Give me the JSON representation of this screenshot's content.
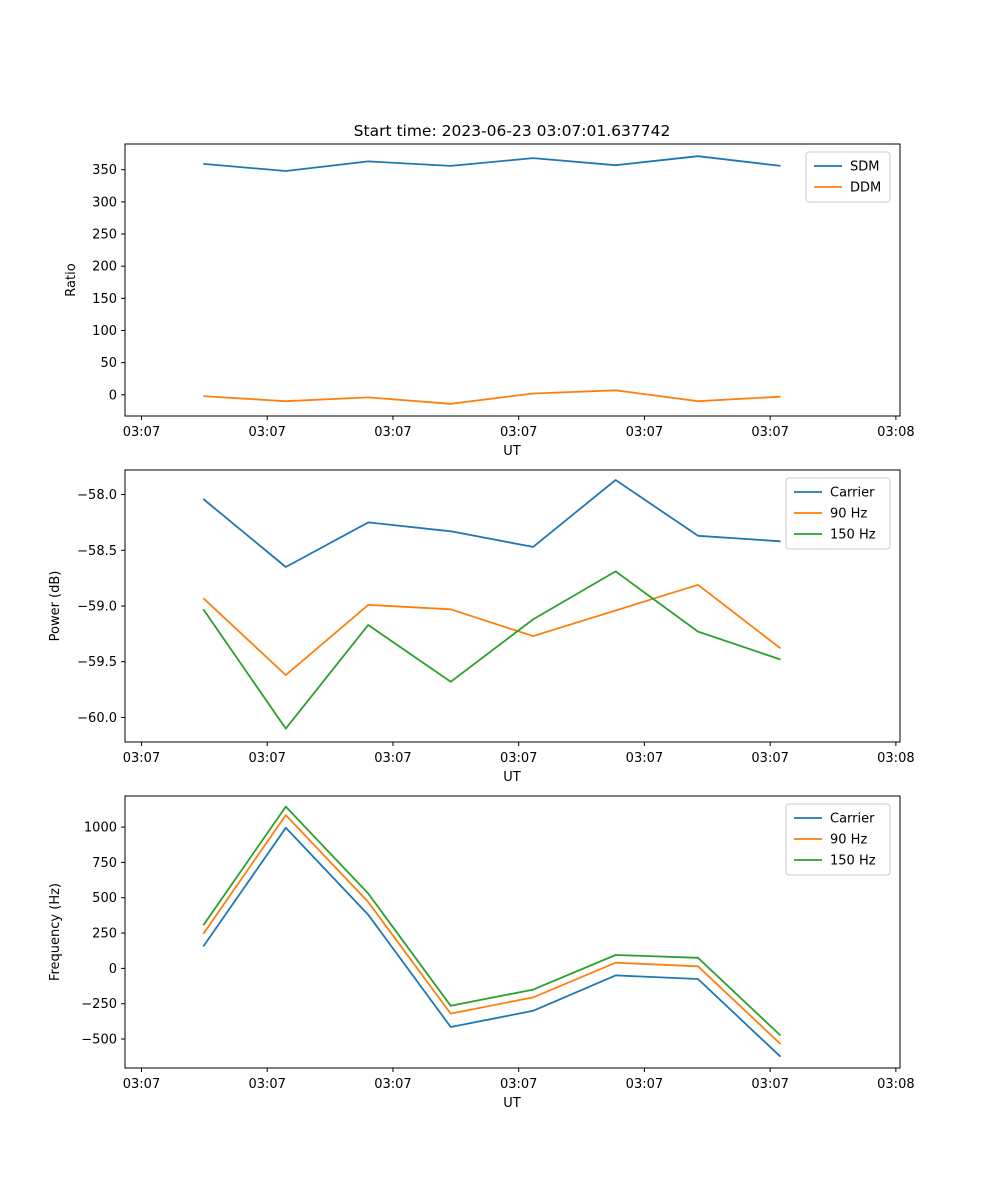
{
  "figure": {
    "title": "Start time: 2023-06-23 03:07:01.637742"
  },
  "chart_data": [
    {
      "type": "line",
      "title": "Start time: 2023-06-23 03:07:01.637742",
      "xlabel": "UT",
      "ylabel": "Ratio",
      "x_tick_labels": [
        "03:07",
        "03:07",
        "03:07",
        "03:07",
        "03:07",
        "03:07",
        "03:08"
      ],
      "ylim": [
        -33,
        390
      ],
      "y_ticks": [
        0,
        50,
        100,
        150,
        200,
        250,
        300,
        350
      ],
      "legend": "top-right",
      "grid": false,
      "series": [
        {
          "name": "SDM",
          "color": "#1f77b4",
          "values": [
            359,
            348,
            363,
            356,
            368,
            357,
            371,
            356
          ]
        },
        {
          "name": "DDM",
          "color": "#ff7f0e",
          "values": [
            -2,
            -10,
            -4,
            -14,
            2,
            7,
            -10,
            -3
          ]
        }
      ]
    },
    {
      "type": "line",
      "title": "",
      "xlabel": "UT",
      "ylabel": "Power (dB)",
      "x_tick_labels": [
        "03:07",
        "03:07",
        "03:07",
        "03:07",
        "03:07",
        "03:07",
        "03:08"
      ],
      "ylim": [
        -60.22,
        -57.78
      ],
      "y_ticks": [
        -60.0,
        -59.5,
        -59.0,
        -58.5,
        -58.0
      ],
      "legend": "top-right",
      "grid": false,
      "series": [
        {
          "name": "Carrier",
          "color": "#1f77b4",
          "values": [
            -58.04,
            -58.65,
            -58.25,
            -58.33,
            -58.47,
            -57.87,
            -58.37,
            -58.42
          ]
        },
        {
          "name": "90 Hz",
          "color": "#ff7f0e",
          "values": [
            -58.93,
            -59.62,
            -58.99,
            -59.03,
            -59.27,
            -59.04,
            -58.81,
            -59.38
          ]
        },
        {
          "name": "150 Hz",
          "color": "#2ca02c",
          "values": [
            -59.03,
            -60.1,
            -59.17,
            -59.68,
            -59.12,
            -58.69,
            -59.23,
            -59.48
          ]
        }
      ]
    },
    {
      "type": "line",
      "title": "",
      "xlabel": "UT",
      "ylabel": "Frequency (Hz)",
      "x_tick_labels": [
        "03:07",
        "03:07",
        "03:07",
        "03:07",
        "03:07",
        "03:07",
        "03:08"
      ],
      "ylim": [
        -705,
        1220
      ],
      "y_ticks": [
        -500,
        -250,
        0,
        250,
        500,
        750,
        1000
      ],
      "legend": "top-right",
      "grid": false,
      "series": [
        {
          "name": "Carrier",
          "color": "#1f77b4",
          "values": [
            155,
            995,
            380,
            -415,
            -300,
            -50,
            -75,
            -625
          ]
        },
        {
          "name": "90 Hz",
          "color": "#ff7f0e",
          "values": [
            245,
            1085,
            470,
            -320,
            -205,
            40,
            15,
            -535
          ]
        },
        {
          "name": "150 Hz",
          "color": "#2ca02c",
          "values": [
            305,
            1145,
            530,
            -265,
            -150,
            95,
            75,
            -475
          ]
        }
      ]
    }
  ]
}
